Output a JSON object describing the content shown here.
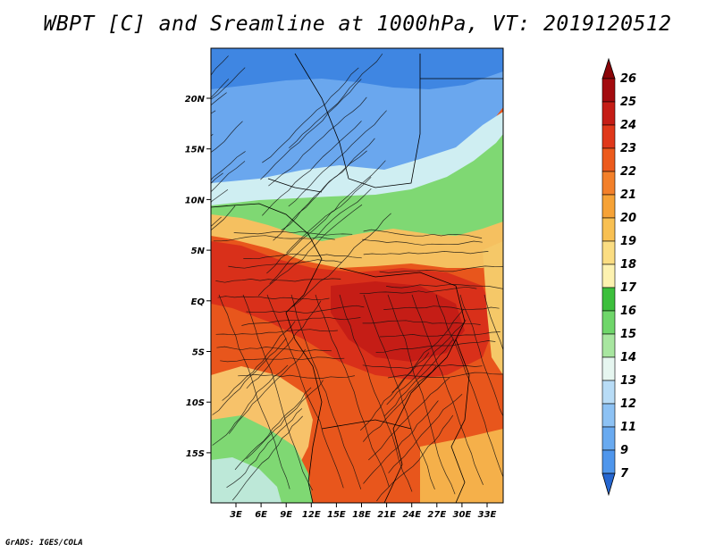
{
  "title": "WBPT [C] and Sreamline at 1000hPa, VT: 2019120512",
  "footer": "GrADS: IGES/COLA",
  "map": {
    "lon_ticks": [
      "3E",
      "6E",
      "9E",
      "12E",
      "15E",
      "18E",
      "21E",
      "24E",
      "27E",
      "30E",
      "33E"
    ],
    "lat_ticks": [
      "20N",
      "15N",
      "10N",
      "5N",
      "EQ",
      "5S",
      "10S",
      "15S"
    ]
  },
  "colorbar": {
    "levels": [
      "7",
      "9",
      "11",
      "12",
      "13",
      "14",
      "15",
      "16",
      "17",
      "18",
      "19",
      "20",
      "21",
      "22",
      "23",
      "24",
      "25",
      "26"
    ],
    "colors": [
      "#2b6fd8",
      "#3a83e6",
      "#4f97ee",
      "#6aabf2",
      "#8cc3f4",
      "#b5dcf6",
      "#def2f2",
      "#a8e6a0",
      "#6fd66a",
      "#3cbf3c",
      "#fdf0a0",
      "#fbd880",
      "#f7b548",
      "#f3932e",
      "#ee6a1c",
      "#e3441a",
      "#c51d16",
      "#9e0a0e",
      "#7a0508",
      "#2566d0"
    ]
  }
}
